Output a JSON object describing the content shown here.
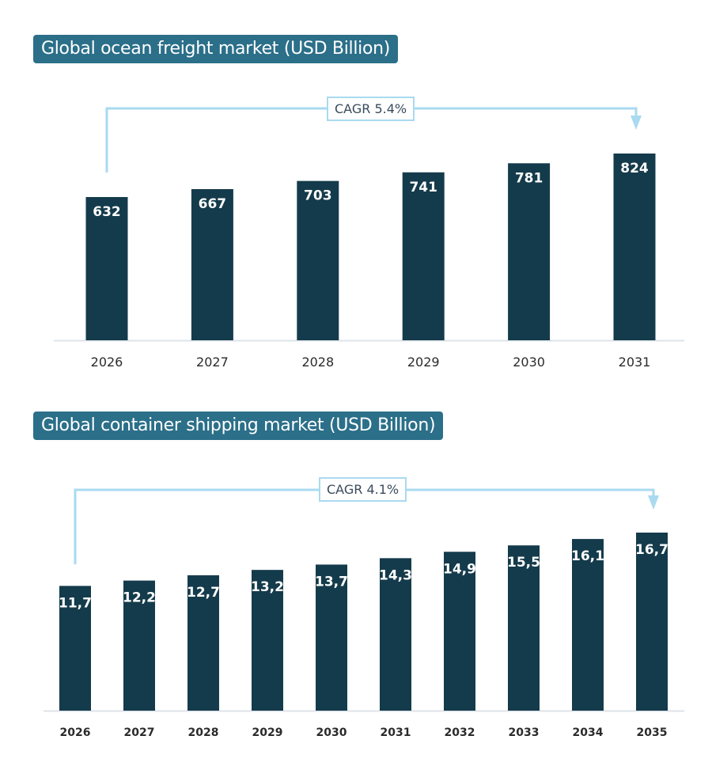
{
  "colors": {
    "bar": "#143b4b",
    "title_bg": "#2b6f89",
    "cagr_line": "#a9daf0",
    "axis": "#dde3ea",
    "value_label": "#ffffff",
    "tick_label": "#2b2b2b"
  },
  "chart_data": [
    {
      "type": "bar",
      "title": "Global ocean freight market (USD Billion)",
      "categories": [
        "2026",
        "2027",
        "2028",
        "2029",
        "2030",
        "2031"
      ],
      "values": [
        632,
        667,
        703,
        741,
        781,
        824
      ],
      "value_labels": [
        "632",
        "667",
        "703",
        "741",
        "781",
        "824"
      ],
      "annotation": "CAGR 5.4%",
      "ylim": [
        0,
        824
      ],
      "grid": false
    },
    {
      "type": "bar",
      "title": "Global container shipping market (USD Billion)",
      "categories": [
        "2026",
        "2027",
        "2028",
        "2029",
        "2030",
        "2031",
        "2032",
        "2033",
        "2034",
        "2035"
      ],
      "values": [
        11.7,
        12.2,
        12.7,
        13.2,
        13.7,
        14.3,
        14.9,
        15.5,
        16.1,
        16.7
      ],
      "value_labels": [
        "11,7",
        "12,2",
        "12,7",
        "13,2",
        "13,7",
        "14,3",
        "14,9",
        "15,5",
        "16,1",
        "16,7"
      ],
      "annotation": "CAGR 4.1%",
      "ylim": [
        0,
        16.7
      ],
      "grid": false
    }
  ]
}
